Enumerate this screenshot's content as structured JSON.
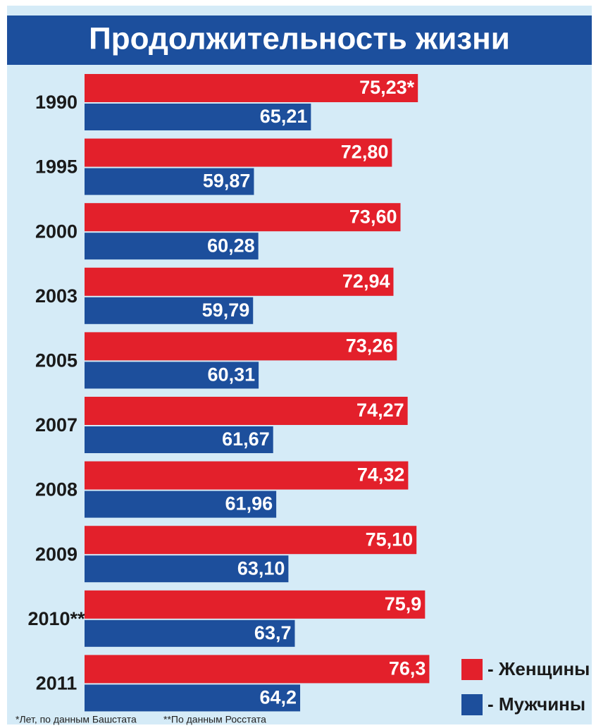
{
  "chart_data": {
    "type": "barh",
    "title": "Продолжительность жизни",
    "categories": [
      "1990",
      "1995",
      "2000",
      "2003",
      "2005",
      "2007",
      "2008",
      "2009",
      "2010**",
      "2011"
    ],
    "series": [
      {
        "name": "- Женщины",
        "color": "#e3202b",
        "values": [
          75.23,
          72.8,
          73.6,
          72.94,
          73.26,
          74.27,
          74.32,
          75.1,
          75.9,
          76.3
        ],
        "value_labels": [
          "75,23*",
          "72,80",
          "73,60",
          "72,94",
          "73,26",
          "74,27",
          "74,32",
          "75,10",
          "75,9",
          "76,3"
        ]
      },
      {
        "name": "- Мужчины",
        "color": "#1d4f9c",
        "values": [
          65.21,
          59.87,
          60.28,
          59.79,
          60.31,
          61.67,
          61.96,
          63.1,
          63.7,
          64.2
        ],
        "value_labels": [
          "65,21",
          "59,87",
          "60,28",
          "59,79",
          "60,31",
          "61,67",
          "61,96",
          "63,10",
          "63,7",
          "64,2"
        ]
      }
    ],
    "xlim": [
      44,
      77
    ],
    "notes": [
      "*Лет, по данным Башстата",
      "**По данным Росстата"
    ]
  }
}
